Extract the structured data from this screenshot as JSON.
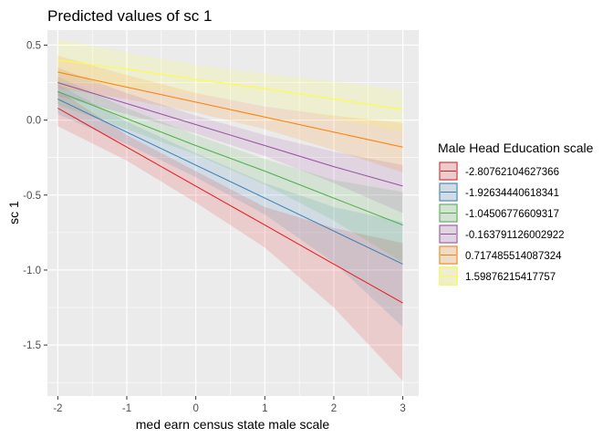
{
  "chart_data": {
    "type": "line",
    "title": "Predicted values of sc 1",
    "xlabel": "med earn census state male scale",
    "ylabel": "sc 1",
    "xlim": [
      -2.15,
      3.23
    ],
    "ylim": [
      -1.84,
      0.6
    ],
    "x_ticks": [
      -2,
      -1,
      0,
      1,
      2,
      3
    ],
    "x_tick_labels": [
      "-2",
      "-1",
      "0",
      "1",
      "2",
      "3"
    ],
    "y_ticks": [
      -1.5,
      -1.0,
      -0.5,
      0.0,
      0.5
    ],
    "y_tick_labels": [
      "-1.5",
      "-1.0",
      "-0.5",
      "0.0",
      "0.5"
    ],
    "grid": true,
    "legend": {
      "title": "Male Head Education scale",
      "placement": "right"
    },
    "series": [
      {
        "name": "-2.80762104627366",
        "color": "#e41a1c",
        "x": [
          -2,
          -1,
          0,
          1,
          2,
          3
        ],
        "y": [
          0.08,
          -0.18,
          -0.44,
          -0.7,
          -0.96,
          -1.22
        ],
        "lower": [
          -0.04,
          -0.27,
          -0.55,
          -0.85,
          -1.25,
          -1.74
        ],
        "upper": [
          0.2,
          -0.1,
          -0.34,
          -0.58,
          -0.72,
          -0.82
        ]
      },
      {
        "name": "-1.92634440618341",
        "color": "#377eb8",
        "x": [
          -2,
          -1,
          0,
          1,
          2,
          3
        ],
        "y": [
          0.14,
          -0.08,
          -0.3,
          -0.52,
          -0.74,
          -0.96
        ],
        "lower": [
          0.04,
          -0.16,
          -0.38,
          -0.63,
          -0.95,
          -1.38
        ],
        "upper": [
          0.24,
          -0.01,
          -0.22,
          -0.42,
          -0.58,
          -0.68
        ]
      },
      {
        "name": "-1.04506776609317",
        "color": "#4daf4a",
        "x": [
          -2,
          -1,
          0,
          1,
          2,
          3
        ],
        "y": [
          0.19,
          0.01,
          -0.17,
          -0.34,
          -0.52,
          -0.7
        ],
        "lower": [
          0.1,
          -0.06,
          -0.23,
          -0.43,
          -0.67,
          -0.95
        ],
        "upper": [
          0.29,
          0.08,
          -0.1,
          -0.26,
          -0.4,
          -0.48
        ]
      },
      {
        "name": "-0.163791126002922",
        "color": "#984ea3",
        "x": [
          -2,
          -1,
          0,
          1,
          2,
          3
        ],
        "y": [
          0.25,
          0.11,
          -0.03,
          -0.17,
          -0.31,
          -0.44
        ],
        "lower": [
          0.16,
          0.04,
          -0.09,
          -0.24,
          -0.42,
          -0.62
        ],
        "upper": [
          0.35,
          0.18,
          0.03,
          -0.1,
          -0.21,
          -0.3
        ]
      },
      {
        "name": "0.717485514087324",
        "color": "#ff7f00",
        "x": [
          -2,
          -1,
          0,
          1,
          2,
          3
        ],
        "y": [
          0.32,
          0.22,
          0.12,
          0.02,
          -0.08,
          -0.18
        ],
        "lower": [
          0.21,
          0.14,
          0.05,
          -0.06,
          -0.2,
          -0.35
        ],
        "upper": [
          0.43,
          0.3,
          0.18,
          0.09,
          0.03,
          -0.02
        ]
      },
      {
        "name": "1.59876215417757",
        "color": "#ffff33",
        "x": [
          -2,
          -1,
          0,
          1,
          2,
          3
        ],
        "y": [
          0.4,
          0.34,
          0.27,
          0.21,
          0.14,
          0.07
        ],
        "lower": [
          0.26,
          0.22,
          0.17,
          0.1,
          0.01,
          -0.08
        ],
        "upper": [
          0.54,
          0.45,
          0.37,
          0.31,
          0.26,
          0.2
        ]
      }
    ]
  }
}
